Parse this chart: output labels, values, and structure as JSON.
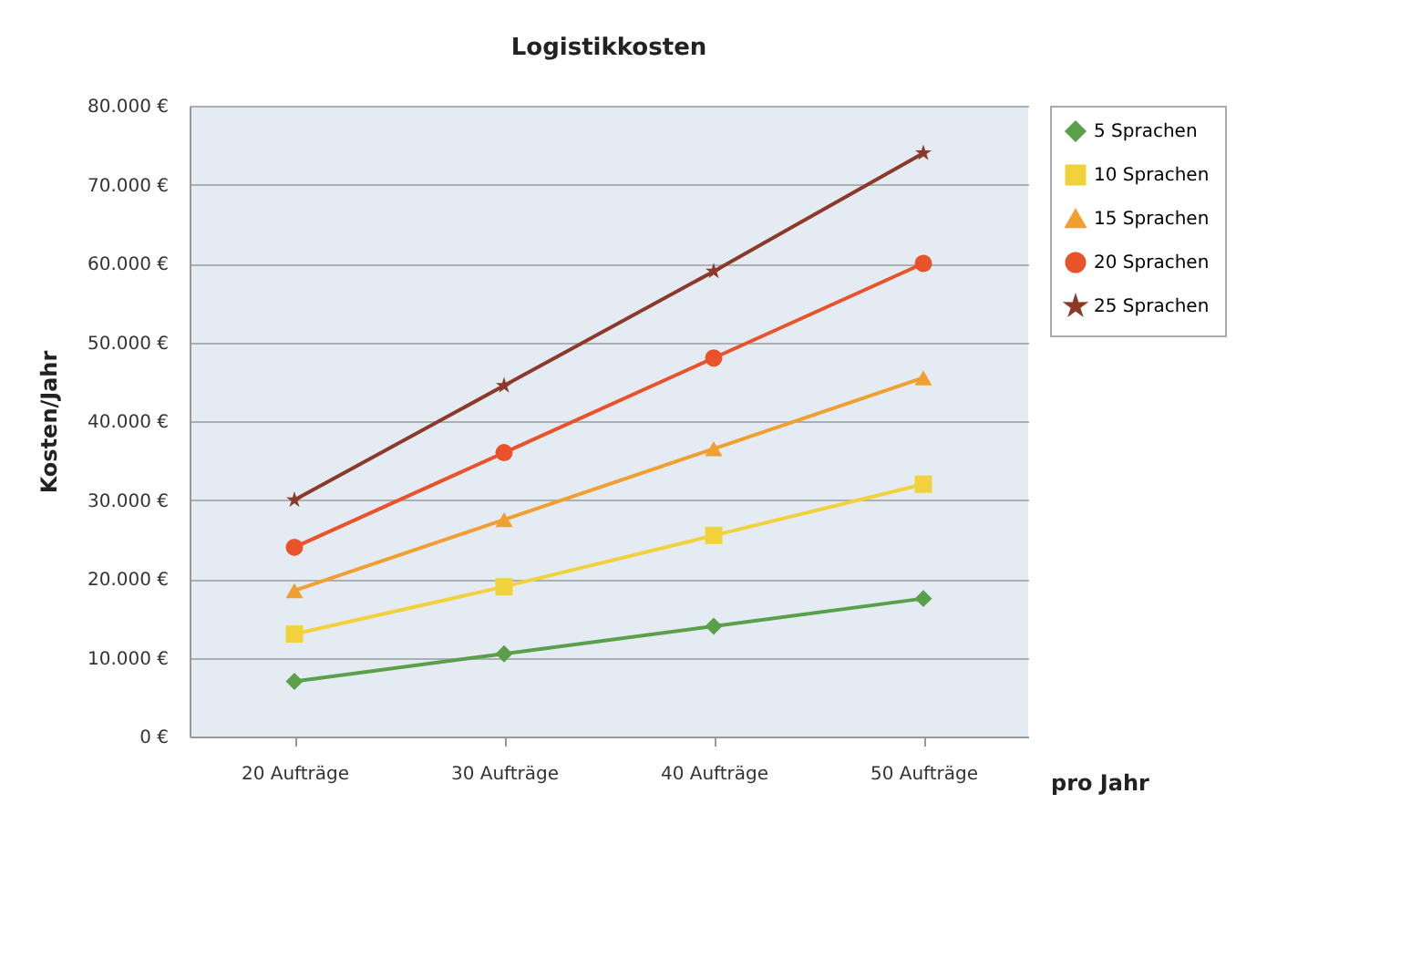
{
  "chart_data": {
    "type": "line",
    "title": "Logistikkosten",
    "xlabel": "pro Jahr",
    "ylabel": "Kosten/Jahr",
    "categories": [
      "20 Aufträge",
      "30 Aufträge",
      "40 Aufträge",
      "50 Aufträge"
    ],
    "series": [
      {
        "name": "5 Sprachen",
        "color": "#5aa04a",
        "marker": "diamond",
        "values": [
          7000,
          10500,
          14000,
          17500
        ]
      },
      {
        "name": "10 Sprachen",
        "color": "#f2d23c",
        "marker": "square",
        "values": [
          13000,
          19000,
          25500,
          32000
        ]
      },
      {
        "name": "15 Sprachen",
        "color": "#f0a030",
        "marker": "triangle",
        "values": [
          18500,
          27500,
          36500,
          45500
        ]
      },
      {
        "name": "20 Sprachen",
        "color": "#e8532a",
        "marker": "circle",
        "values": [
          24000,
          36000,
          48000,
          60000
        ]
      },
      {
        "name": "25 Sprachen",
        "color": "#8b3a2a",
        "marker": "star",
        "values": [
          30000,
          44500,
          59000,
          74000
        ]
      }
    ],
    "ylim": [
      0,
      80000
    ],
    "yticks": [
      {
        "value": 0,
        "label": "0 €"
      },
      {
        "value": 10000,
        "label": "10.000 €"
      },
      {
        "value": 20000,
        "label": "20.000 €"
      },
      {
        "value": 30000,
        "label": "30.000 €"
      },
      {
        "value": 40000,
        "label": "40.000 €"
      },
      {
        "value": 50000,
        "label": "50.000 €"
      },
      {
        "value": 60000,
        "label": "60.000 €"
      },
      {
        "value": 70000,
        "label": "70.000 €"
      },
      {
        "value": 80000,
        "label": "80.000 €"
      }
    ],
    "grid": "y",
    "legend": "right",
    "line_style": "solid"
  }
}
